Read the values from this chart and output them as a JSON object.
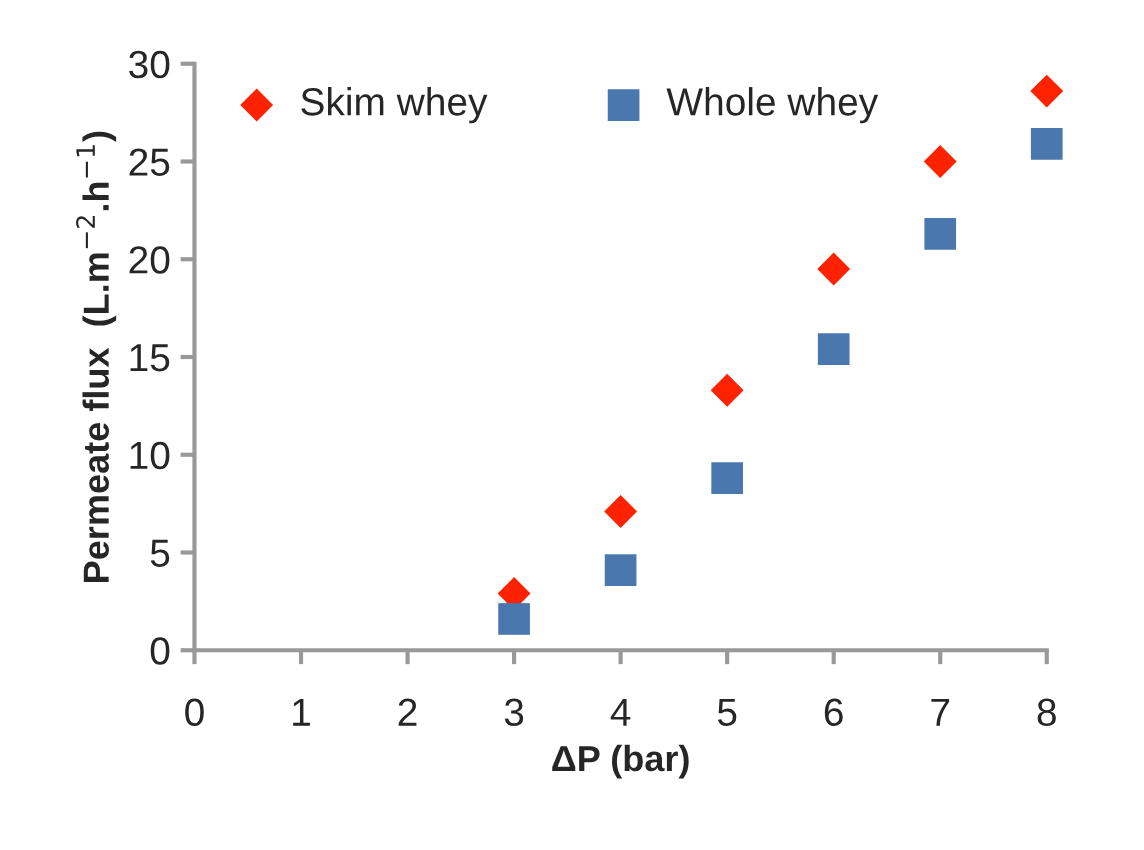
{
  "chart_data": {
    "type": "scatter",
    "xlabel": "ΔP (bar)",
    "ylabel": "Permeate flux  (L.m$^{−2}$.h$^{−1}$)",
    "x": [
      3,
      4,
      5,
      6,
      7,
      8
    ],
    "series": [
      {
        "name": "Skim whey",
        "color": "#ff2200",
        "marker": "diamond",
        "values": [
          2.9,
          7.1,
          13.3,
          19.5,
          25.0,
          28.6
        ]
      },
      {
        "name": "Whole whey",
        "color": "#4a78ae",
        "marker": "square",
        "values": [
          1.6,
          4.1,
          8.8,
          15.4,
          21.3,
          25.9
        ]
      }
    ],
    "xlim": [
      0,
      8
    ],
    "xticks": [
      0,
      1,
      2,
      3,
      4,
      5,
      6,
      7,
      8
    ],
    "ylim": [
      0,
      30
    ],
    "yticks": [
      0,
      5,
      10,
      15,
      20,
      25,
      30
    ],
    "grid": false,
    "legend": "top left"
  }
}
